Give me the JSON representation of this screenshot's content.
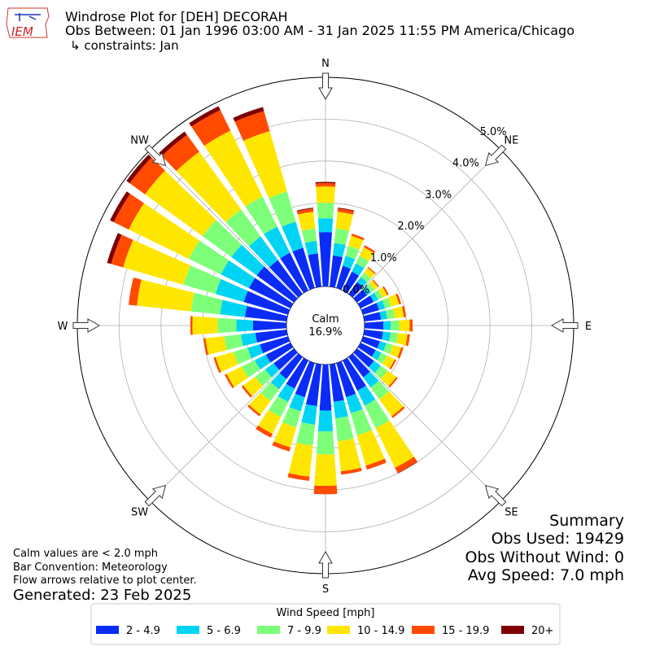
{
  "logo_text": "IEM",
  "chart_data": {
    "type": "windrose",
    "title": "Windrose Plot for [DEH] DECORAH",
    "subtitle": "Obs Between: 01 Jan 1996 03:00 AM - 31 Jan 2025 11:55 PM America/Chicago",
    "constraints": "↳ constraints: Jan",
    "calm_label": "Calm",
    "calm_text": "16.9%",
    "notes": [
      "Calm values are < 2.0 mph",
      "Bar Convention: Meteorology",
      "Flow arrows relative to plot center."
    ],
    "generated": "Generated: 23 Feb 2025",
    "summary": [
      "Summary",
      "Obs Used: 19429",
      "Obs Without Wind: 0",
      "Avg Speed: 7.0 mph"
    ],
    "legend_title": "Wind Speed [mph]",
    "grid": true,
    "x": [
      0,
      10,
      20,
      30,
      40,
      50,
      60,
      70,
      80,
      90,
      100,
      110,
      120,
      130,
      140,
      150,
      160,
      170,
      180,
      190,
      200,
      210,
      220,
      230,
      240,
      250,
      260,
      270,
      280,
      290,
      300,
      310,
      320,
      330,
      340,
      350
    ],
    "xticks": [
      {
        "value": 0,
        "label": "N"
      },
      {
        "value": 45,
        "label": "NE"
      },
      {
        "value": 90,
        "label": "E"
      },
      {
        "value": 135,
        "label": "SE"
      },
      {
        "value": 180,
        "label": "S"
      },
      {
        "value": 225,
        "label": "SW"
      },
      {
        "value": 270,
        "label": "W"
      },
      {
        "value": 315,
        "label": "NW"
      }
    ],
    "ylim": [
      0,
      5
    ],
    "yticks": [
      {
        "value": 0,
        "label": "0.0%"
      },
      {
        "value": 1,
        "label": "1.0%"
      },
      {
        "value": 2,
        "label": "2.0%"
      },
      {
        "value": 3,
        "label": "3.0%"
      },
      {
        "value": 4,
        "label": "4.0%"
      },
      {
        "value": 5,
        "label": "5.0%"
      }
    ],
    "series": [
      {
        "name": "2 - 4.9",
        "color": "#0a2cf6",
        "values": [
          1.3,
          0.75,
          0.55,
          0.5,
          0.35,
          0.3,
          0.35,
          0.4,
          0.4,
          0.45,
          0.45,
          0.42,
          0.4,
          0.5,
          0.6,
          0.8,
          0.85,
          0.9,
          1.1,
          1.0,
          0.85,
          0.75,
          0.65,
          0.6,
          0.65,
          0.7,
          0.75,
          0.8,
          1.0,
          1.1,
          1.1,
          1.1,
          1.0,
          1.0,
          1.0,
          0.8
        ]
      },
      {
        "name": "5 - 6.9",
        "color": "#00d4f4",
        "values": [
          0.33,
          0.3,
          0.25,
          0.22,
          0.15,
          0.12,
          0.12,
          0.15,
          0.15,
          0.18,
          0.18,
          0.16,
          0.15,
          0.2,
          0.3,
          0.4,
          0.4,
          0.4,
          0.5,
          0.45,
          0.35,
          0.35,
          0.3,
          0.25,
          0.3,
          0.3,
          0.35,
          0.4,
          0.6,
          0.7,
          0.75,
          0.75,
          0.7,
          0.7,
          0.65,
          0.3
        ]
      },
      {
        "name": "7 - 9.9",
        "color": "#7dff7a",
        "values": [
          0.37,
          0.35,
          0.25,
          0.2,
          0.13,
          0.1,
          0.12,
          0.15,
          0.18,
          0.2,
          0.18,
          0.16,
          0.15,
          0.2,
          0.35,
          0.6,
          0.55,
          0.55,
          0.55,
          0.5,
          0.4,
          0.4,
          0.35,
          0.3,
          0.35,
          0.35,
          0.4,
          0.45,
          0.7,
          0.8,
          0.85,
          0.85,
          0.8,
          0.8,
          0.75,
          0.3
        ]
      },
      {
        "name": "10 - 14.9",
        "color": "#ffe600",
        "values": [
          0.39,
          0.4,
          0.25,
          0.23,
          0.14,
          0.1,
          0.12,
          0.2,
          0.22,
          0.25,
          0.23,
          0.21,
          0.21,
          0.26,
          0.5,
          1.05,
          0.75,
          0.72,
          0.75,
          0.75,
          0.5,
          0.45,
          0.4,
          0.35,
          0.4,
          0.45,
          0.45,
          0.6,
          1.3,
          1.5,
          1.6,
          1.7,
          1.7,
          1.75,
          1.5,
          0.4
        ]
      },
      {
        "name": "15 - 19.9",
        "color": "#ff4a00",
        "values": [
          0.08,
          0.08,
          0.05,
          0.05,
          0.03,
          0.03,
          0.04,
          0.05,
          0.05,
          0.07,
          0.06,
          0.05,
          0.04,
          0.04,
          0.05,
          0.14,
          0.1,
          0.08,
          0.2,
          0.1,
          0.1,
          0.1,
          0.05,
          0.05,
          0.05,
          0.05,
          0.05,
          0.05,
          0.2,
          0.3,
          0.4,
          0.45,
          0.5,
          0.55,
          0.5,
          0.08
        ]
      },
      {
        "name": "20+",
        "color": "#7f0000",
        "values": [
          0.03,
          0.02,
          0,
          0,
          0,
          0,
          0,
          0,
          0,
          0,
          0,
          0,
          0,
          0,
          0,
          0.01,
          0,
          0,
          0,
          0,
          0,
          0,
          0,
          0,
          0,
          0,
          0,
          0,
          0,
          0.1,
          0.1,
          0.1,
          0.1,
          0.1,
          0.1,
          0.02
        ]
      }
    ]
  }
}
